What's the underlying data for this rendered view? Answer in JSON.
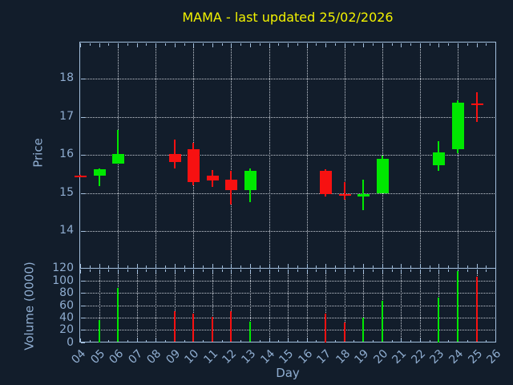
{
  "title": "MAMA - last updated 25/02/2026",
  "axes": {
    "price_label": "Price",
    "volume_label": "Volume (0000)",
    "day_label": "Day",
    "price_ticks": [
      "18",
      "17",
      "16",
      "15",
      "14"
    ],
    "volume_ticks": [
      "120",
      "100",
      "80",
      "60",
      "40",
      "20",
      "0"
    ],
    "day_ticks": [
      "04",
      "05",
      "06",
      "07",
      "08",
      "09",
      "10",
      "11",
      "12",
      "13",
      "14",
      "15",
      "16",
      "17",
      "18",
      "19",
      "20",
      "21",
      "22",
      "23",
      "24",
      "25",
      "26"
    ]
  },
  "colors": {
    "background": "#121d2b",
    "spine": "#a3bfdd",
    "grid": "#c6ccd5",
    "tick_label": "#8fadd0",
    "axis_label": "#8fadd0",
    "title": "#f2f200",
    "up": "#00e800",
    "down": "#f71111"
  },
  "chart_data": [
    {
      "type": "candlestick",
      "title": "MAMA - last updated 25/02/2026",
      "xlabel": "Day",
      "ylabel": "Price",
      "xlim": [
        4,
        26
      ],
      "ylim": [
        13.0,
        18.95
      ],
      "yticks": [
        14,
        15,
        16,
        17,
        18
      ],
      "x_gridline_days": [
        6,
        8,
        10,
        12,
        14,
        16,
        18,
        20,
        22,
        24
      ],
      "grid": "dotted",
      "legend": "none",
      "candles": [
        {
          "day": 4,
          "open": 15.46,
          "high": 15.47,
          "low": 15.43,
          "close": 15.44,
          "direction": "down"
        },
        {
          "day": 5,
          "open": 15.46,
          "high": 15.64,
          "low": 15.17,
          "close": 15.63,
          "direction": "up"
        },
        {
          "day": 6,
          "open": 15.76,
          "high": 16.66,
          "low": 15.76,
          "close": 16.02,
          "direction": "up"
        },
        {
          "day": 9,
          "open": 16.02,
          "high": 16.41,
          "low": 15.65,
          "close": 15.8,
          "direction": "down"
        },
        {
          "day": 10,
          "open": 16.15,
          "high": 16.31,
          "low": 15.19,
          "close": 15.29,
          "direction": "down"
        },
        {
          "day": 11,
          "open": 15.45,
          "high": 15.6,
          "low": 15.15,
          "close": 15.33,
          "direction": "down"
        },
        {
          "day": 12,
          "open": 15.34,
          "high": 15.59,
          "low": 14.7,
          "close": 15.08,
          "direction": "down"
        },
        {
          "day": 13,
          "open": 15.08,
          "high": 15.64,
          "low": 14.76,
          "close": 15.58,
          "direction": "up"
        },
        {
          "day": 17,
          "open": 15.58,
          "high": 15.63,
          "low": 14.91,
          "close": 14.96,
          "direction": "down"
        },
        {
          "day": 18,
          "open": 14.97,
          "high": 15.28,
          "low": 14.83,
          "close": 14.93,
          "direction": "down"
        },
        {
          "day": 19,
          "open": 14.92,
          "high": 15.35,
          "low": 14.55,
          "close": 14.96,
          "direction": "up"
        },
        {
          "day": 20,
          "open": 14.99,
          "high": 15.97,
          "low": 14.99,
          "close": 15.9,
          "direction": "up"
        },
        {
          "day": 23,
          "open": 15.72,
          "high": 16.36,
          "low": 15.58,
          "close": 16.07,
          "direction": "up"
        },
        {
          "day": 24,
          "open": 16.14,
          "high": 17.43,
          "low": 16.05,
          "close": 17.38,
          "direction": "up"
        },
        {
          "day": 25,
          "open": 17.35,
          "high": 17.64,
          "low": 16.87,
          "close": 17.31,
          "direction": "down"
        }
      ]
    },
    {
      "type": "bar",
      "ylabel": "Volume (0000)",
      "xlabel": "Day",
      "xlim": [
        4,
        26
      ],
      "ylim": [
        0,
        120
      ],
      "yticks": [
        0,
        20,
        40,
        60,
        80,
        100,
        120
      ],
      "x_gridlines_every": 1,
      "grid": "dotted",
      "bars": [
        {
          "day": 5,
          "volume": 36,
          "direction": "up"
        },
        {
          "day": 6,
          "volume": 88,
          "direction": "up"
        },
        {
          "day": 9,
          "volume": 50,
          "direction": "down"
        },
        {
          "day": 10,
          "volume": 46,
          "direction": "down"
        },
        {
          "day": 11,
          "volume": 41,
          "direction": "down"
        },
        {
          "day": 12,
          "volume": 50,
          "direction": "down"
        },
        {
          "day": 13,
          "volume": 33,
          "direction": "up"
        },
        {
          "day": 17,
          "volume": 47,
          "direction": "down"
        },
        {
          "day": 18,
          "volume": 32,
          "direction": "down"
        },
        {
          "day": 19,
          "volume": 40,
          "direction": "up"
        },
        {
          "day": 20,
          "volume": 67,
          "direction": "up"
        },
        {
          "day": 23,
          "volume": 73,
          "direction": "up"
        },
        {
          "day": 24,
          "volume": 115,
          "direction": "up"
        },
        {
          "day": 25,
          "volume": 106,
          "direction": "down"
        }
      ]
    }
  ]
}
